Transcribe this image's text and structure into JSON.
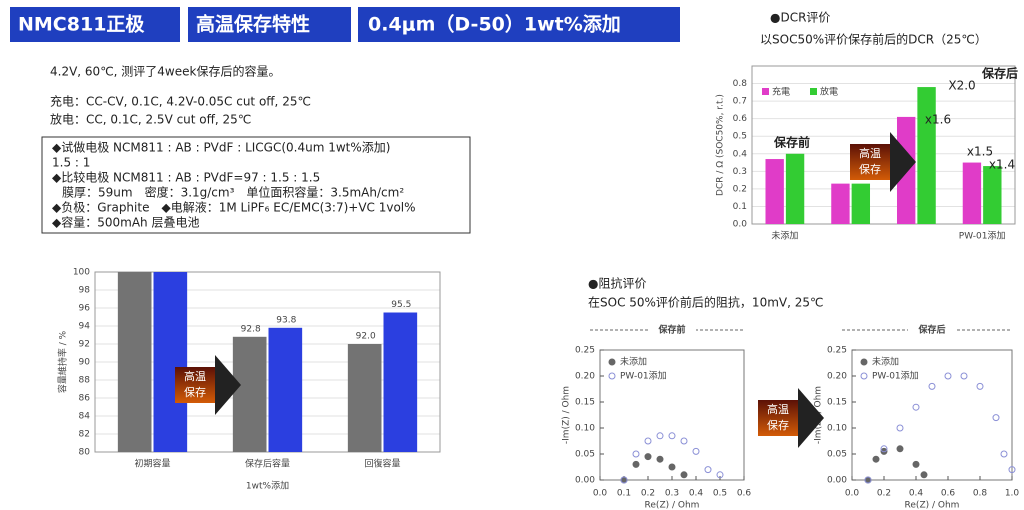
{
  "header": {
    "tags": [
      "NMC811正极",
      "高温保存特性",
      "0.4μm（D-50）1wt%添加"
    ]
  },
  "notes": [
    "4.2V, 60℃, 测评了4week保存后的容量。",
    "充电：CC-CV, 0.1C, 4.2V-0.05C cut off, 25℃",
    "放电：CC, 0.1C, 2.5V cut off, 25℃"
  ],
  "spec": [
    "◆试做电极 NCM811 : AB : PVdF : LICGC(0.4um 1wt%添加)",
    "1.5 : 1",
    "◆比较电极 NCM811 : AB : PVdF=97 : 1.5 : 1.5",
    "膜厚：59um　密度：3.1g/cm³　单位面积容量：3.5mAh/cm²",
    "◆负极：Graphite　◆电解液：1M LiPF₆ EC/EMC(3:7)+VC 1vol%",
    "◆容量：500mAh 层叠电池"
  ],
  "heat_badge": [
    "高温",
    "保存"
  ],
  "impedance": {
    "title": "●阻抗评价",
    "subtitle": "在SOC 50%评价前后的阻抗，10mV, 25℃"
  },
  "chart_data": [
    {
      "type": "bar",
      "y_label": "容量維持率 / %",
      "x_label": "1wt%添加",
      "categories": [
        "初期容量",
        "保存后容量",
        "回復容量"
      ],
      "series": [
        {
          "name": "未添加",
          "color": "#737373",
          "values": [
            100,
            92.8,
            92.0
          ],
          "value_labels": [
            null,
            "92.8",
            "92.0"
          ]
        },
        {
          "name": "1wt%添加",
          "color": "#2b3fe0",
          "values": [
            100,
            93.8,
            95.5
          ],
          "value_labels": [
            null,
            "93.8",
            "95.5"
          ]
        }
      ],
      "ylim": [
        80,
        100
      ],
      "yticks": [
        80,
        82,
        84,
        86,
        88,
        90,
        92,
        94,
        96,
        98,
        100
      ],
      "grid": true,
      "legend": false
    },
    {
      "type": "bar",
      "title": "●DCR评价",
      "subtitle": "以SOC50%评价保存前后的DCR（25℃）",
      "y_label": "DCR / Ω (SOC50%, r.t.)",
      "categories": [
        "未添加",
        null,
        null,
        "PW-01添加"
      ],
      "series": [
        {
          "name": "充電",
          "color": "#e03cc8",
          "values": [
            0.37,
            0.23,
            0.61,
            0.35
          ]
        },
        {
          "name": "放電",
          "color": "#33cc33",
          "values": [
            0.4,
            0.23,
            0.78,
            0.33
          ]
        }
      ],
      "ylim": [
        0,
        0.9
      ],
      "yticks": [
        {
          "value": 0,
          "label": "0.0"
        },
        0.1,
        0.2,
        0.3,
        0.4,
        0.5,
        0.6,
        0.7,
        0.8
      ],
      "grid": true,
      "legend": "upper left",
      "annotations": [
        "保存前",
        "保存后",
        "X2.0",
        "x1.6",
        "x1.5",
        "x1.4"
      ]
    },
    {
      "type": "scatter",
      "title": "保存前",
      "x_label": "Re(Z) / Ohm",
      "y_label": "-Im(Z) / Ohm",
      "series": [
        {
          "name": "未添加",
          "color": "#666666",
          "x": [
            0.1,
            0.15,
            0.2,
            0.25,
            0.3,
            0.35
          ],
          "values": [
            0,
            0.03,
            0.045,
            0.04,
            0.025,
            0.01
          ]
        },
        {
          "name": "PW-01添加",
          "color": "#8a8fd6",
          "x": [
            0.1,
            0.15,
            0.2,
            0.25,
            0.3,
            0.35,
            0.4,
            0.45,
            0.5
          ],
          "values": [
            0,
            0.05,
            0.075,
            0.085,
            0.085,
            0.075,
            0.055,
            0.02,
            0.01
          ]
        }
      ],
      "xlim": [
        0,
        0.6
      ],
      "xticks": [
        {
          "value": 0,
          "label": "0.0"
        },
        0.1,
        0.2,
        0.3,
        0.4,
        0.5,
        0.6
      ],
      "ylim": [
        0,
        0.25
      ],
      "yticks": [
        {
          "value": 0,
          "label": "0.00"
        },
        0.05,
        {
          "value": 0.1,
          "label": "0.10"
        },
        0.15,
        {
          "value": 0.2,
          "label": "0.20"
        },
        0.25
      ],
      "legend": "upper left"
    },
    {
      "type": "scatter",
      "title": "保存后",
      "x_label": "Re(Z) / Ohm",
      "y_label": "-Im(Z) / Ohm",
      "series": [
        {
          "name": "未添加",
          "color": "#666666",
          "x": [
            0.1,
            0.15,
            0.2,
            0.3,
            0.4,
            0.45
          ],
          "values": [
            0,
            0.04,
            0.055,
            0.06,
            0.03,
            0.01
          ]
        },
        {
          "name": "PW-01添加",
          "color": "#8a8fd6",
          "x": [
            0.1,
            0.2,
            0.3,
            0.4,
            0.5,
            0.6,
            0.7,
            0.8,
            0.9,
            0.95,
            1.0
          ],
          "values": [
            0,
            0.06,
            0.1,
            0.14,
            0.18,
            0.2,
            0.2,
            0.18,
            0.12,
            0.05,
            0.02
          ]
        }
      ],
      "xlim": [
        0,
        1.0
      ],
      "xticks": [
        {
          "value": 0,
          "label": "0.0"
        },
        0.2,
        0.4,
        0.6,
        0.8,
        {
          "value": 1,
          "label": "1.0"
        }
      ],
      "ylim": [
        0,
        0.25
      ],
      "yticks": [
        {
          "value": 0,
          "label": "0.00"
        },
        0.05,
        {
          "value": 0.1,
          "label": "0.10"
        },
        0.15,
        {
          "value": 0.2,
          "label": "0.20"
        },
        0.25
      ],
      "legend": "upper left"
    }
  ]
}
